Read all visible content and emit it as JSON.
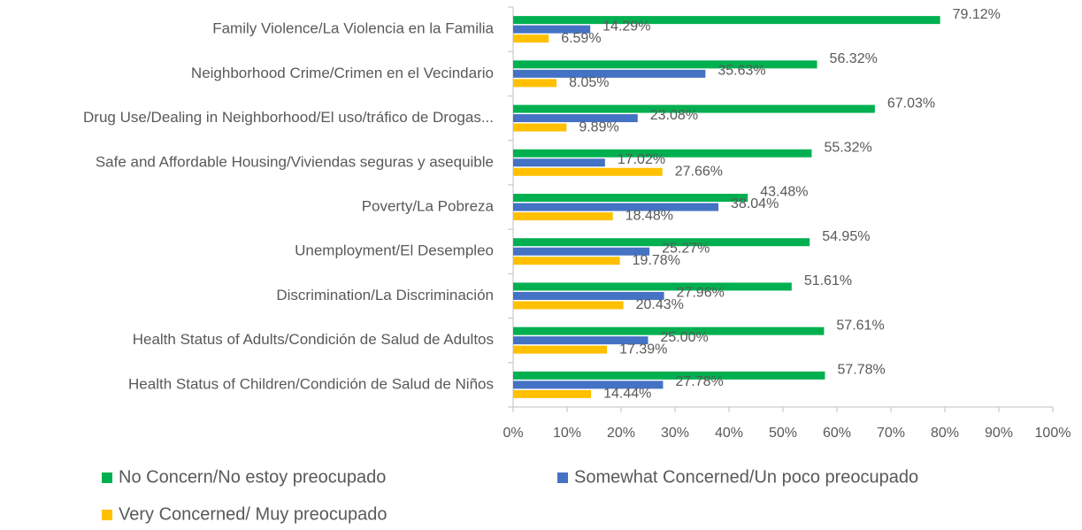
{
  "chart_data": {
    "type": "bar",
    "orientation": "horizontal",
    "categories": [
      "Family Violence/La Violencia en la Familia",
      "Neighborhood Crime/Crimen en el Vecindario",
      "Drug Use/Dealing in Neighborhood/El uso/tráfico de Drogas...",
      "Safe and Affordable Housing/Viviendas seguras y asequible",
      "Poverty/La Pobreza",
      "Unemployment/El Desempleo",
      "Discrimination/La Discriminación",
      "Health Status of Adults/Condición de Salud de Adultos",
      "Health Status of Children/Condición de Salud de Niños"
    ],
    "series": [
      {
        "name": "No Concern/No estoy preocupado",
        "color": "#00b050",
        "values": [
          79.12,
          56.32,
          67.03,
          55.32,
          43.48,
          54.95,
          51.61,
          57.61,
          57.78
        ],
        "value_labels": [
          "79.12%",
          "56.32%",
          "67.03%",
          "55.32%",
          "43.48%",
          "54.95%",
          "51.61%",
          "57.61%",
          "57.78%"
        ]
      },
      {
        "name": "Somewhat Concerned/Un poco preocupado",
        "color": "#4472c4",
        "values": [
          14.29,
          35.63,
          23.08,
          17.02,
          38.04,
          25.27,
          27.96,
          25.0,
          27.78
        ],
        "value_labels": [
          "14.29%",
          "35.63%",
          "23.08%",
          "17.02%",
          "38.04%",
          "25.27%",
          "27.96%",
          "25.00%",
          "27.78%"
        ]
      },
      {
        "name": "Very Concerned/ Muy preocupado",
        "color": "#ffc000",
        "values": [
          6.59,
          8.05,
          9.89,
          27.66,
          18.48,
          19.78,
          20.43,
          17.39,
          14.44
        ],
        "value_labels": [
          "6.59%",
          "8.05%",
          "9.89%",
          "27.66%",
          "18.48%",
          "19.78%",
          "20.43%",
          "17.39%",
          "14.44%"
        ]
      }
    ],
    "xlim": [
      0,
      100
    ],
    "xticks": [
      {
        "value": 0,
        "label": "0%"
      },
      {
        "value": 10,
        "label": "10%"
      },
      {
        "value": 20,
        "label": "20%"
      },
      {
        "value": 30,
        "label": "30%"
      },
      {
        "value": 40,
        "label": "40%"
      },
      {
        "value": 50,
        "label": "50%"
      },
      {
        "value": 60,
        "label": "60%"
      },
      {
        "value": 70,
        "label": "70%"
      },
      {
        "value": 80,
        "label": "80%"
      },
      {
        "value": 90,
        "label": "90%"
      },
      {
        "value": 100,
        "label": "100%"
      }
    ],
    "grid": false,
    "legend": "bottom"
  }
}
